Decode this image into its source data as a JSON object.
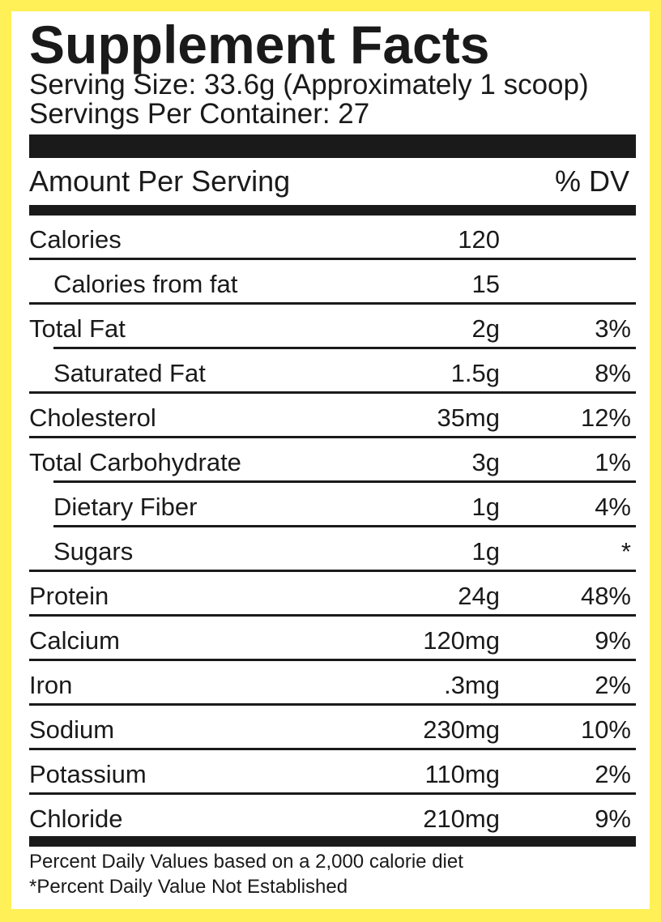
{
  "label": {
    "title": "Supplement Facts",
    "serving_size": "Serving Size: 33.6g (Approximately 1 scoop)",
    "servings_per_container": "Servings Per Container: 27",
    "amount_per_serving": "Amount Per Serving",
    "dv_header": "% DV",
    "rows": [
      {
        "name": "Calories",
        "amount": "120",
        "dv": ""
      },
      {
        "name": "Calories from fat",
        "amount": "15",
        "dv": ""
      },
      {
        "name": "Total Fat",
        "amount": "2g",
        "dv": "3%"
      },
      {
        "name": "Saturated Fat",
        "amount": "1.5g",
        "dv": "8%"
      },
      {
        "name": "Cholesterol",
        "amount": "35mg",
        "dv": "12%"
      },
      {
        "name": "Total Carbohydrate",
        "amount": "3g",
        "dv": "1%"
      },
      {
        "name": "Dietary Fiber",
        "amount": "1g",
        "dv": "4%"
      },
      {
        "name": "Sugars",
        "amount": "1g",
        "dv": "*"
      },
      {
        "name": "Protein",
        "amount": "24g",
        "dv": "48%"
      },
      {
        "name": "Calcium",
        "amount": "120mg",
        "dv": "9%"
      },
      {
        "name": "Iron",
        "amount": ".3mg",
        "dv": "2%"
      },
      {
        "name": "Sodium",
        "amount": "230mg",
        "dv": "10%"
      },
      {
        "name": "Potassium",
        "amount": "110mg",
        "dv": "2%"
      },
      {
        "name": "Chloride",
        "amount": "210mg",
        "dv": "9%"
      }
    ],
    "footnote_dv": "Percent Daily Values based on a 2,000 calorie diet",
    "footnote_not_established": "*Percent Daily Value Not Established"
  },
  "colors": {
    "border": "#fef056",
    "panel": "#ffffff",
    "ink": "#1a1a1a"
  }
}
